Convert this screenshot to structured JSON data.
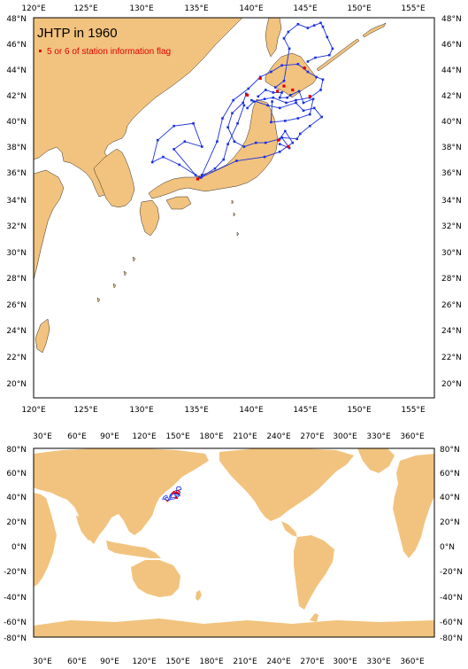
{
  "colors": {
    "land": "#f2c37e",
    "ocean": "#ffffff",
    "track": "#1a2fe0",
    "flag": "#e00000",
    "frame": "#000000"
  },
  "top_map": {
    "title": "JHTP in 1960",
    "legend_label": "5 or 6 of station information flag",
    "lon_labels_top": [
      "120°E",
      "125°E",
      "130°E",
      "135°E",
      "140°E",
      "145°E",
      "150°E",
      "155°E"
    ],
    "lon_labels_bottom": [
      "120°E",
      "125°E",
      "130°E",
      "135°E",
      "140°E",
      "145°E",
      "150°E",
      "155°E"
    ],
    "lat_labels_left": [
      "48°N",
      "46°N",
      "44°N",
      "42°N",
      "40°N",
      "38°N",
      "36°N",
      "34°N",
      "32°N",
      "30°N",
      "28°N",
      "26°N",
      "24°N",
      "22°N",
      "20°N"
    ],
    "lat_labels_right": [
      "48°N",
      "46°N",
      "44°N",
      "42°N",
      "40°N",
      "38°N",
      "36°N",
      "34°N",
      "32°N",
      "30°N",
      "28°N",
      "26°N",
      "24°N",
      "22°N",
      "20°N"
    ]
  },
  "bottom_map": {
    "lon_labels_top": [
      "30°E",
      "60°E",
      "90°E",
      "120°E",
      "150°E",
      "180°E",
      "210°E",
      "240°E",
      "270°E",
      "300°E",
      "330°E",
      "360°E"
    ],
    "lon_labels_bottom": [
      "30°E",
      "60°E",
      "90°E",
      "120°E",
      "150°E",
      "180°E",
      "210°E",
      "240°E",
      "270°E",
      "300°E",
      "330°E",
      "360°E"
    ],
    "lat_labels_left": [
      "80°N",
      "60°N",
      "40°N",
      "20°N",
      "0°N",
      "-20°N",
      "-40°N",
      "-60°N",
      "-80°N"
    ],
    "lat_labels_right": [
      "80°N",
      "60°N",
      "40°N",
      "20°N",
      "0°N",
      "-20°N",
      "-40°N",
      "-60°N",
      "-80°N"
    ]
  },
  "track": {
    "tour_a": [
      [
        135.4,
        35.6
      ],
      [
        133.5,
        36.6
      ],
      [
        132.0,
        37.2
      ],
      [
        131.0,
        36.8
      ],
      [
        131.5,
        38.5
      ],
      [
        133.0,
        39.6
      ],
      [
        134.8,
        39.8
      ],
      [
        135.6,
        38.0
      ],
      [
        134.0,
        38.4
      ],
      [
        133.0,
        37.8
      ],
      [
        135.0,
        35.8
      ]
    ],
    "tour_b": [
      [
        135.6,
        35.8
      ],
      [
        137.0,
        38.4
      ],
      [
        137.5,
        40.2
      ],
      [
        138.5,
        41.6
      ],
      [
        139.9,
        42.5
      ],
      [
        141.0,
        43.4
      ],
      [
        142.0,
        43.8
      ],
      [
        143.0,
        44.3
      ],
      [
        144.5,
        44.4
      ],
      [
        145.4,
        43.8
      ],
      [
        146.2,
        43.4
      ],
      [
        146.8,
        43.2
      ],
      [
        146.6,
        42.4
      ],
      [
        145.6,
        41.8
      ],
      [
        144.3,
        41.6
      ],
      [
        143.4,
        41.4
      ],
      [
        142.2,
        41.8
      ],
      [
        141.4,
        41.7
      ],
      [
        140.4,
        41.5
      ],
      [
        139.8,
        41.0
      ]
    ],
    "tour_c": [
      [
        140.2,
        41.6
      ],
      [
        141.7,
        41.2
      ],
      [
        142.8,
        41.0
      ],
      [
        144.3,
        41.4
      ],
      [
        145.0,
        40.8
      ],
      [
        146.0,
        41.0
      ],
      [
        146.7,
        40.3
      ],
      [
        145.6,
        39.6
      ],
      [
        144.7,
        39.0
      ],
      [
        144.4,
        38.6
      ],
      [
        143.0,
        38.7
      ],
      [
        143.7,
        37.9
      ],
      [
        142.8,
        38.2
      ]
    ],
    "tour_d": [
      [
        140.8,
        41.9
      ],
      [
        141.5,
        42.4
      ],
      [
        142.2,
        42.2
      ],
      [
        143.0,
        42.2
      ],
      [
        142.8,
        41.8
      ],
      [
        143.5,
        41.8
      ],
      [
        143.8,
        42.0
      ],
      [
        144.6,
        42.3
      ],
      [
        145.0,
        41.4
      ],
      [
        145.9,
        41.7
      ],
      [
        145.6,
        40.5
      ],
      [
        144.5,
        40.2
      ],
      [
        143.3,
        40.0
      ],
      [
        142.0,
        39.9
      ],
      [
        142.1,
        41.5
      ]
    ],
    "tour_e": [
      [
        142.4,
        42.6
      ],
      [
        143.2,
        43.1
      ],
      [
        143.7,
        45.6
      ],
      [
        143.2,
        46.4
      ],
      [
        143.6,
        46.9
      ],
      [
        144.5,
        47.5
      ],
      [
        145.4,
        47.2
      ],
      [
        146.0,
        47.4
      ],
      [
        146.6,
        47.6
      ],
      [
        146.8,
        47.3
      ],
      [
        147.2,
        46.5
      ],
      [
        147.7,
        45.6
      ],
      [
        147.4,
        45.1
      ],
      [
        146.1,
        44.9
      ],
      [
        145.4,
        44.6
      ]
    ],
    "tour_f": [
      [
        135.5,
        35.6
      ],
      [
        138.8,
        36.9
      ],
      [
        141.4,
        37.2
      ],
      [
        142.8,
        37.6
      ],
      [
        144.0,
        38.3
      ],
      [
        143.3,
        39.2
      ],
      [
        142.8,
        38.6
      ],
      [
        141.5,
        38.3
      ],
      [
        140.6,
        38.3
      ],
      [
        139.5,
        38.0
      ],
      [
        138.6,
        38.4
      ],
      [
        138.0,
        39.5
      ],
      [
        138.4,
        40.6
      ],
      [
        139.4,
        41.4
      ],
      [
        139.7,
        42.1
      ]
    ],
    "tour_g": [
      [
        135.6,
        35.7
      ],
      [
        136.8,
        36.3
      ],
      [
        137.6,
        37.0
      ],
      [
        138.0,
        38.2
      ],
      [
        138.9,
        39.8
      ],
      [
        139.5,
        41.2
      ]
    ],
    "flags": [
      [
        135.2,
        35.5
      ],
      [
        139.8,
        42.0
      ],
      [
        141.0,
        43.3
      ],
      [
        142.6,
        42.3
      ],
      [
        143.2,
        42.7
      ],
      [
        145.1,
        44.1
      ],
      [
        145.6,
        41.9
      ],
      [
        142.7,
        38.5
      ],
      [
        143.6,
        38.0
      ],
      [
        144.0,
        42.4
      ]
    ]
  }
}
